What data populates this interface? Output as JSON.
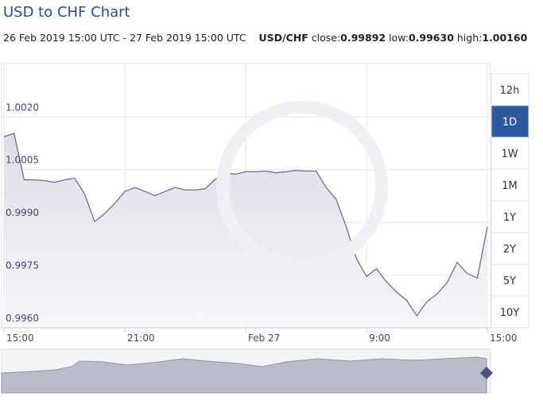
{
  "chart_data": {
    "type": "area",
    "title": "USD to CHF Chart",
    "period": "26 Feb 2019 15:00 UTC - 27 Feb 2019 15:00 UTC",
    "pair": "USD/CHF",
    "stats": [
      {
        "label": "close:",
        "value": "0.99892"
      },
      {
        "label": "low:",
        "value": "0.99630"
      },
      {
        "label": "high:",
        "value": "1.00160"
      }
    ],
    "x": [
      0,
      0.5,
      1,
      1.5,
      2,
      2.5,
      3,
      3.5,
      4,
      4.5,
      5,
      5.5,
      6,
      6.5,
      7,
      7.5,
      8,
      8.5,
      9,
      9.5,
      10,
      10.5,
      11,
      11.5,
      12,
      12.5,
      13,
      13.5,
      14,
      14.5,
      15,
      15.5,
      16,
      16.5,
      17,
      17.5,
      18,
      18.5,
      19,
      19.5,
      20,
      20.5,
      21,
      21.5,
      22,
      22.5,
      23,
      23.5,
      24
    ],
    "values": [
      1.00144,
      1.00153,
      1.00021,
      1.00021,
      1.00019,
      1.00014,
      1.00021,
      1.00026,
      0.99981,
      0.99902,
      0.99925,
      0.99954,
      0.99988,
      0.99999,
      0.99988,
      0.99976,
      0.99988,
      0.99999,
      0.99992,
      0.99992,
      0.99996,
      1.00023,
      1.00041,
      1.00037,
      1.00044,
      1.00044,
      1.00046,
      1.00041,
      1.00044,
      1.00048,
      1.00046,
      1.00046,
      0.99999,
      0.99965,
      0.99887,
      0.99797,
      0.99746,
      0.99768,
      0.9973,
      0.99701,
      0.99678,
      0.99634,
      0.99674,
      0.99696,
      0.99728,
      0.99786,
      0.99755,
      0.99741,
      0.99887
    ],
    "color": "#6b6f93",
    "xlim": [
      -0.12,
      24.16
    ],
    "xticks": [
      {
        "value": 0,
        "label": "15:00"
      },
      {
        "value": 6,
        "label": "21:00"
      },
      {
        "value": 12,
        "label": "Feb 27"
      },
      {
        "value": 18,
        "label": "9:00"
      },
      {
        "value": 24,
        "label": "15:00"
      }
    ],
    "ylim": [
      0.996,
      1.00352
    ],
    "yticks": [
      {
        "value": 0.996,
        "label": "0.9960"
      },
      0.9975,
      {
        "value": 0.999,
        "label": "0.9990"
      },
      1.0005,
      {
        "value": 1.002,
        "label": "1.0020"
      }
    ],
    "grid": true
  },
  "controls": {
    "ranges": [
      "12h",
      "1D",
      "1W",
      "1M",
      "1Y",
      "2Y",
      "5Y",
      "10Y"
    ],
    "active": 1
  }
}
